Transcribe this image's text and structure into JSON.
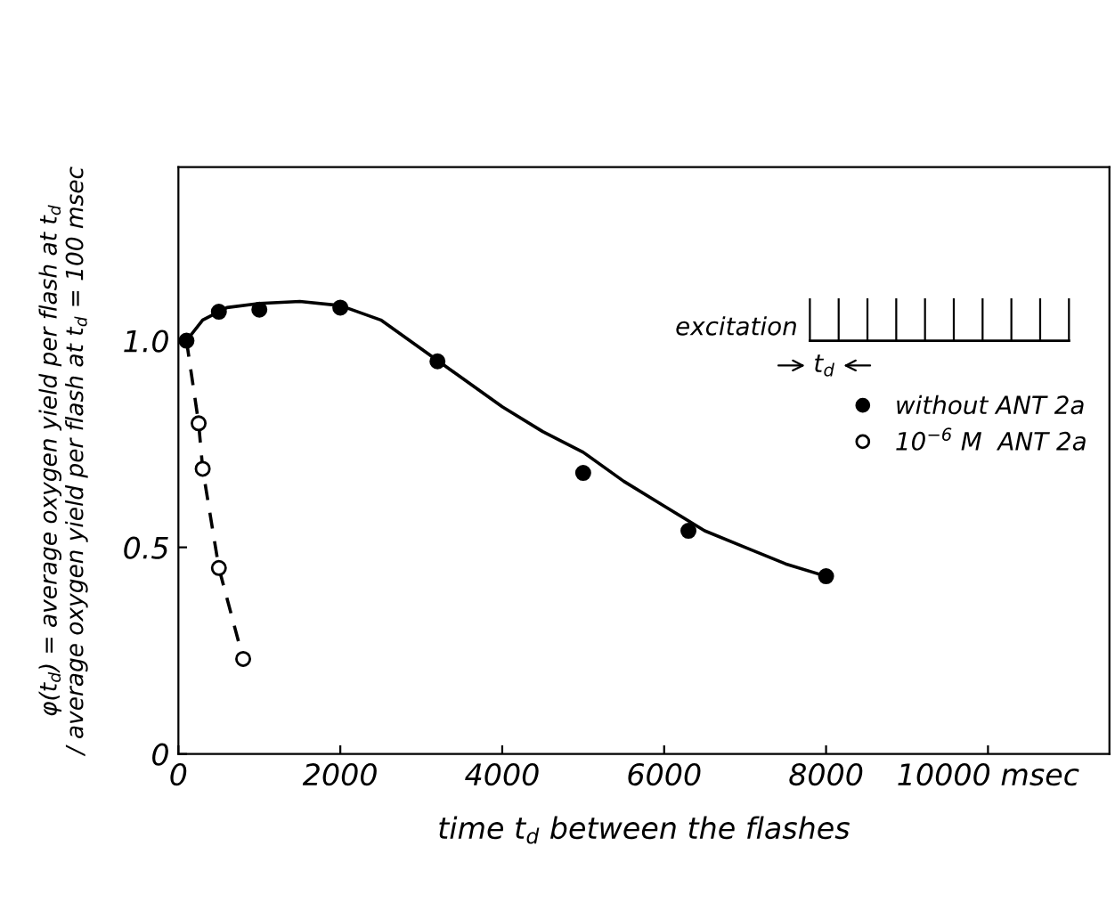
{
  "chart_data": {
    "type": "line",
    "xlabel": "time t$_{d}$ between the flashes",
    "ylabel": "φ(t$_{d}$) = average oxygen yield per flash at t$_{d}$\n/ average oxygen yield per flash at t$_{d}$ = 100 msec",
    "xlim": [
      0,
      11500
    ],
    "ylim": [
      0,
      1.42
    ],
    "xticks": [
      0,
      2000,
      4000,
      6000,
      8000,
      {
        "value": 10000,
        "label": "10000 msec"
      }
    ],
    "yticks": [
      0,
      0.5,
      {
        "value": 1.0,
        "label": "1.0"
      }
    ],
    "grid": false,
    "legend": "right",
    "annotations": [
      "excitation",
      "t$_{d}$"
    ],
    "series": [
      {
        "name": "without ANT 2a",
        "type": "scatter",
        "marker": "circle",
        "color": "#000000",
        "x": [
          100,
          500,
          1000,
          2000,
          3200,
          5000,
          6300,
          8000
        ],
        "values": [
          1.0,
          1.07,
          1.075,
          1.08,
          0.95,
          0.68,
          0.54,
          0.43
        ]
      },
      {
        "name": "10$^{−6}$ M  ANT 2a",
        "type": "scatter",
        "marker": "circle",
        "color": "#ffffff",
        "x": [
          250,
          300,
          500,
          800
        ],
        "values": [
          0.8,
          0.69,
          0.45,
          0.23
        ]
      },
      {
        "line_style": "solid",
        "color": "#000000",
        "x": [
          100,
          300,
          600,
          1000,
          1500,
          2000,
          2500,
          3000,
          3500,
          4000,
          4500,
          5000,
          5500,
          6000,
          6500,
          7000,
          7500,
          8000
        ],
        "values": [
          1.0,
          1.05,
          1.08,
          1.09,
          1.095,
          1.085,
          1.05,
          0.98,
          0.91,
          0.84,
          0.78,
          0.73,
          0.66,
          0.6,
          0.54,
          0.5,
          0.46,
          0.43
        ]
      },
      {
        "line_style": "dashed",
        "color": "#000000",
        "x": [
          100,
          250,
          300,
          500,
          800
        ],
        "values": [
          1.0,
          0.8,
          0.69,
          0.45,
          0.23
        ]
      }
    ]
  }
}
